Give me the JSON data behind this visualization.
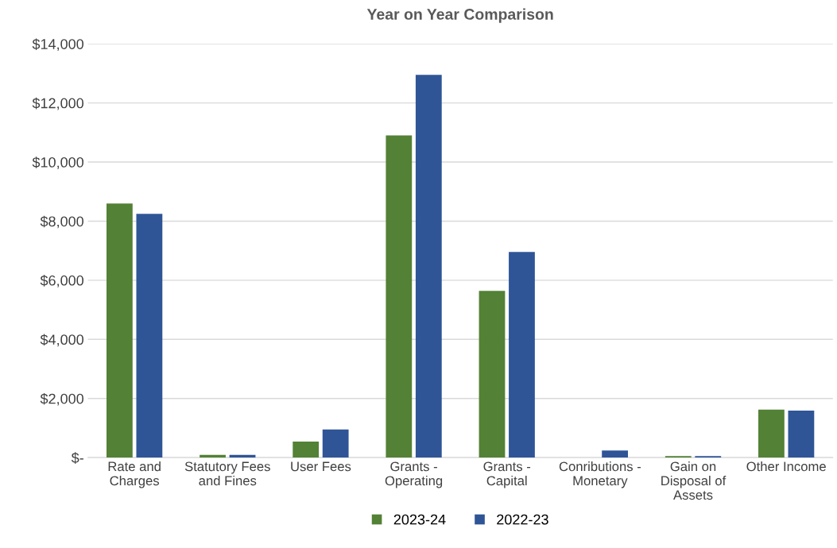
{
  "chart_data": {
    "type": "bar",
    "title": "Year on Year Comparison",
    "categories": [
      "Rate and Charges",
      "Statutory Fees and Fines",
      "User Fees",
      "Grants - Operating",
      "Grants - Capital",
      "Conributions - Monetary",
      "Gain on Disposal of Assets",
      "Other Income"
    ],
    "series": [
      {
        "name": "2023-24",
        "color": "#538135",
        "values": [
          8600,
          90,
          540,
          10900,
          5640,
          0,
          50,
          1620
        ]
      },
      {
        "name": "2022-23",
        "color": "#2f5597",
        "values": [
          8250,
          90,
          950,
          12950,
          6960,
          240,
          50,
          1590
        ]
      }
    ],
    "ylim": [
      0,
      14000
    ],
    "yticks": [
      {
        "value": 0,
        "label": "$-"
      },
      {
        "value": 2000,
        "label": "$2,000"
      },
      {
        "value": 4000,
        "label": "$4,000"
      },
      {
        "value": 6000,
        "label": "$6,000"
      },
      {
        "value": 8000,
        "label": "$8,000"
      },
      {
        "value": 10000,
        "label": "$10,000"
      },
      {
        "value": 12000,
        "label": "$12,000"
      },
      {
        "value": 14000,
        "label": "$14,000"
      }
    ],
    "grid": "y",
    "legend": "bottom"
  }
}
